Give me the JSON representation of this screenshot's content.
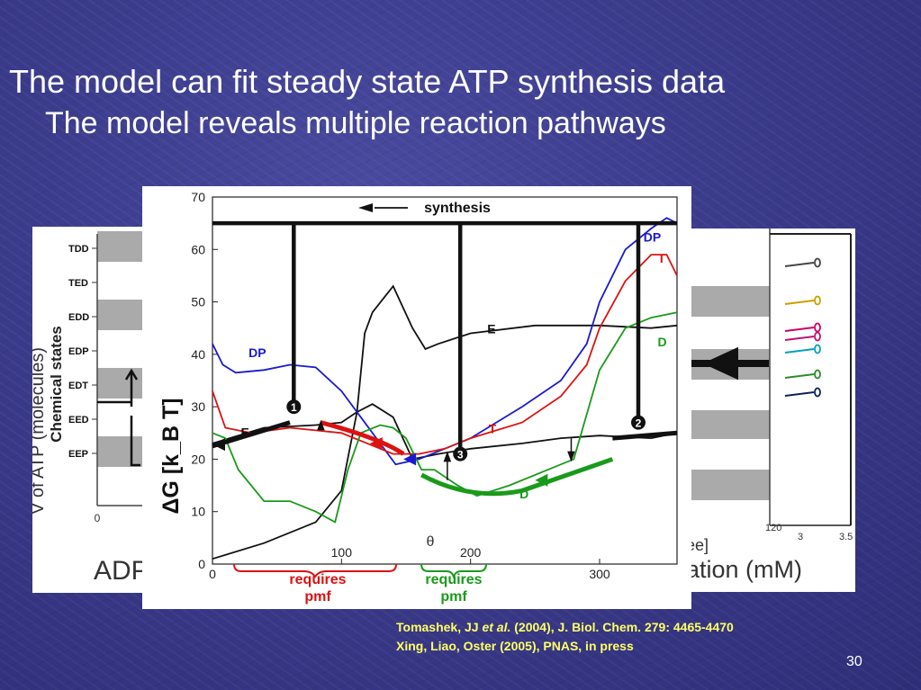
{
  "slide": {
    "title": "The model can fit steady state ATP synthesis data",
    "subtitle": "The model reveals multiple reaction pathways",
    "number": "30"
  },
  "citations": {
    "line1_pre": "Tomashek, JJ ",
    "line1_italic": "et al.",
    "line1_post": " (2004), J. Biol. Chem. 279: 4465-4470",
    "line2": "Xing, Liao, Oster (2005), PNAS, in press"
  },
  "left_figure": {
    "ylabel": "Chemical states",
    "states": [
      "TDD",
      "TED",
      "EDD",
      "EDP",
      "EDT",
      "EED",
      "EEP"
    ],
    "x_tick": "0",
    "bottom_text": "ADP",
    "side_fragment": "V of ATP (molecules)"
  },
  "right_figure": {
    "bottom_text": "ation (mM)",
    "bracket_text": "ee]",
    "ticks": [
      "120",
      "3",
      "3.5"
    ],
    "marker_colors": [
      "#444444",
      "#c8a000",
      "#cc0066",
      "#c01070",
      "#00a0c0",
      "#2a8a2a",
      "#10205a"
    ]
  },
  "chart_data": {
    "type": "line",
    "title": "",
    "xlabel": "θ",
    "ylabel": "ΔG [k_B T]",
    "xlim": [
      0,
      360
    ],
    "ylim": [
      0,
      70
    ],
    "x_ticks": [
      0,
      100,
      200,
      300
    ],
    "y_ticks": [
      0,
      10,
      20,
      30,
      40,
      50,
      60,
      70
    ],
    "series": [
      {
        "name": "E",
        "color": "#111111",
        "x": [
          0,
          40,
          80,
          100,
          112,
          118,
          124,
          140,
          155,
          165,
          175,
          200,
          250,
          300,
          340,
          360
        ],
        "y": [
          1,
          4,
          8,
          14,
          29,
          44,
          48,
          53,
          45,
          41,
          42,
          44,
          45.5,
          45.5,
          45,
          45.5
        ]
      },
      {
        "name": "E",
        "color": "#111111",
        "x": [
          0,
          40,
          80,
          100,
          112,
          124,
          140,
          155,
          175,
          200,
          240,
          270,
          300,
          340,
          360
        ],
        "y": [
          23,
          26,
          26.5,
          27,
          29,
          30.5,
          28,
          20,
          21,
          22,
          23,
          24,
          24.5,
          24,
          25
        ]
      },
      {
        "name": "DP",
        "color": "#1a1acc",
        "x": [
          0,
          8,
          18,
          40,
          60,
          80,
          100,
          115,
          130,
          142,
          160,
          180,
          200,
          240,
          270,
          290,
          300,
          320,
          340,
          352,
          360
        ],
        "y": [
          42,
          38,
          36.5,
          37,
          38,
          37.5,
          33,
          28,
          23,
          19,
          20,
          22,
          24,
          30,
          35,
          42,
          50,
          60,
          64,
          66,
          65
        ]
      },
      {
        "name": "T",
        "color": "#dd1111",
        "x": [
          0,
          10,
          30,
          60,
          80,
          100,
          120,
          140,
          160,
          180,
          200,
          240,
          270,
          290,
          300,
          320,
          340,
          352,
          360
        ],
        "y": [
          33,
          26,
          25,
          26,
          25.5,
          25,
          23,
          21,
          21,
          22,
          24,
          27,
          32,
          38,
          45,
          54,
          59,
          59,
          55
        ]
      },
      {
        "name": "D",
        "color": "#1a9a1a",
        "x": [
          0,
          10,
          20,
          40,
          60,
          80,
          95,
          105,
          115,
          130,
          140,
          150,
          162,
          172,
          190,
          205,
          230,
          260,
          280,
          300,
          320,
          340,
          360
        ],
        "y": [
          25,
          24,
          18,
          12,
          12,
          10,
          8,
          18,
          25,
          26.5,
          26,
          24,
          18,
          18,
          15,
          13,
          15,
          18,
          20,
          37,
          45,
          47,
          48
        ]
      },
      {
        "name": "synthesis",
        "color": "#111111",
        "x": [
          0,
          360
        ],
        "y": [
          65,
          65
        ]
      }
    ],
    "annotations": {
      "arrow_label": "synthesis",
      "markers": [
        "1",
        "2",
        "3"
      ],
      "curve_labels": [
        "DP",
        "T",
        "E",
        "D",
        "DP",
        "E",
        "T",
        "E",
        "D"
      ],
      "requires_pmf_red": [
        "requires",
        "pmf"
      ],
      "requires_pmf_green": [
        "requires",
        "pmf"
      ]
    },
    "grid": false
  }
}
